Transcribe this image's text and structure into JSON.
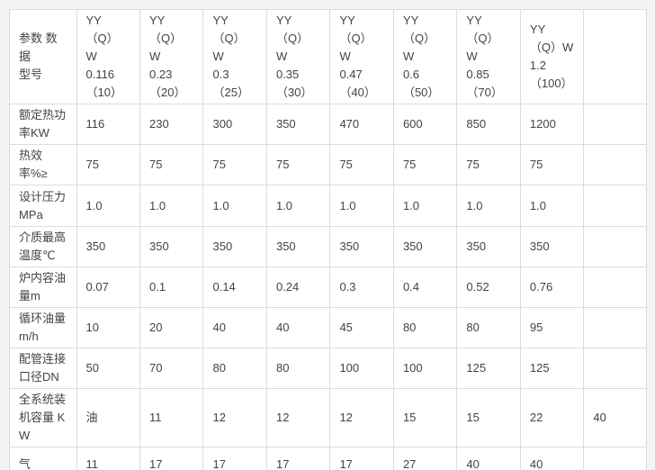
{
  "colors": {
    "page_bg": "#f4f4f4",
    "cell_bg": "#ffffff",
    "border": "#dcdcdc",
    "text": "#444444"
  },
  "table": {
    "corner_label": "参数 数据\n型号",
    "column_headers": [
      "YY（Q）\nW\n0.116\n（10）",
      "YY（Q）\nW\n0.23\n（20）",
      "YY（Q）\nW\n0.3\n（25）",
      "YY（Q）\nW\n0.35\n（30）",
      "YY（Q）\nW\n0.47\n（40）",
      "YY（Q）\nW\n0.6\n（50）",
      "YY（Q）\nW\n0.85\n（70）",
      "YY\n（Q）W\n1.2\n（100）",
      ""
    ],
    "rows": [
      {
        "label": "额定热功\n率KW",
        "values": [
          "116",
          "230",
          "300",
          "350",
          "470",
          "600",
          "850",
          "1200",
          ""
        ]
      },
      {
        "label": "热效率%≥",
        "values": [
          "75",
          "75",
          "75",
          "75",
          "75",
          "75",
          "75",
          "75",
          ""
        ]
      },
      {
        "label": "设计压力\nMPa",
        "values": [
          "1.0",
          "1.0",
          "1.0",
          "1.0",
          "1.0",
          "1.0",
          "1.0",
          "1.0",
          ""
        ]
      },
      {
        "label": "介质最高\n温度℃",
        "values": [
          "350",
          "350",
          "350",
          "350",
          "350",
          "350",
          "350",
          "350",
          ""
        ]
      },
      {
        "label": "炉内容油\n量m",
        "values": [
          "0.07",
          "0.1",
          "0.14",
          "0.24",
          "0.3",
          "0.4",
          "0.52",
          "0.76",
          ""
        ]
      },
      {
        "label": "循环油量\nm/h",
        "values": [
          "10",
          "20",
          "40",
          "40",
          "45",
          "80",
          "80",
          "95",
          ""
        ]
      },
      {
        "label": "配管连接\n口径DN",
        "values": [
          "50",
          "70",
          "80",
          "80",
          "100",
          "100",
          "125",
          "125",
          ""
        ]
      },
      {
        "label": "全系统装\n机容量 K\nW",
        "values": [
          "油",
          "11",
          "12",
          "12",
          "12",
          "15",
          "15",
          "22",
          "40"
        ]
      },
      {
        "label": "气",
        "values": [
          "11",
          "17",
          "17",
          "17",
          "17",
          "27",
          "40",
          "40",
          ""
        ]
      }
    ]
  }
}
